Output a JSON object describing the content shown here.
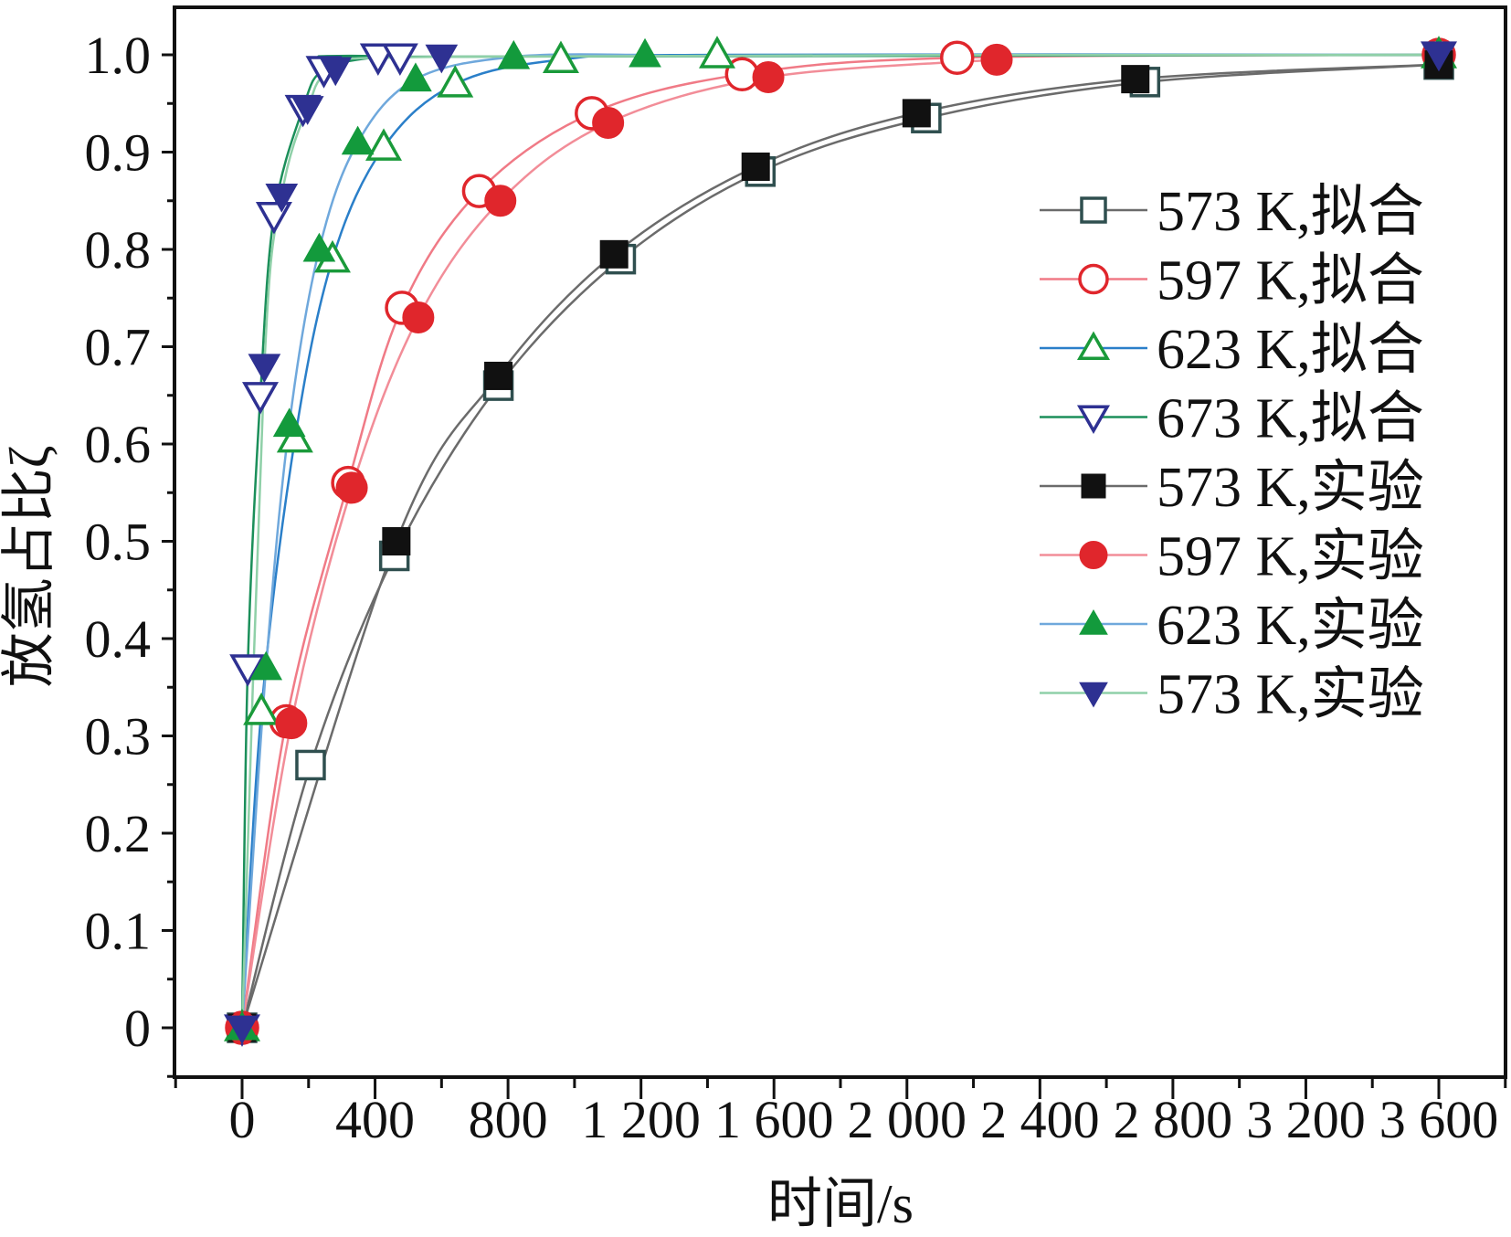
{
  "chart_data": {
    "type": "line",
    "title": "",
    "xlabel": "时间/s",
    "ylabel": "放氢占比ζ",
    "xlim": [
      -200,
      3800
    ],
    "ylim": [
      -0.05,
      1.05
    ],
    "x_ticks": [
      0,
      400,
      800,
      1200,
      1600,
      2000,
      2400,
      2800,
      3200,
      3600
    ],
    "x_tick_labels": [
      "0",
      "400",
      "800",
      "1 200",
      "1 600",
      "2 000",
      "2 400",
      "2 800",
      "3 200",
      "3 600"
    ],
    "y_ticks": [
      0,
      0.1,
      0.2,
      0.3,
      0.4,
      0.5,
      0.6,
      0.7,
      0.8,
      0.9,
      1.0
    ],
    "y_tick_labels": [
      "0",
      "0.1",
      "0.2",
      "0.3",
      "0.4",
      "0.5",
      "0.6",
      "0.7",
      "0.8",
      "0.9",
      "1.0"
    ],
    "grid": false,
    "legend_position": "right",
    "series": [
      {
        "name": "573 K,拟合",
        "line_color": "#6b6b6b",
        "marker": "square-open",
        "marker_color": "#2f4f4f",
        "x": [
          0,
          206,
          458,
          771,
          1139,
          1559,
          2058,
          2716,
          3600
        ],
        "y": [
          0,
          0.27,
          0.485,
          0.66,
          0.79,
          0.88,
          0.935,
          0.972,
          0.99
        ]
      },
      {
        "name": "597 K,拟合",
        "line_color": "#f07a86",
        "marker": "circle-open",
        "marker_color": "#e0262c",
        "x": [
          0,
          133,
          319,
          481,
          713,
          1052,
          1504,
          2151,
          3600
        ],
        "y": [
          0,
          0.315,
          0.56,
          0.74,
          0.86,
          0.94,
          0.98,
          0.997,
          1.0
        ]
      },
      {
        "name": "623 K,拟合",
        "line_color": "#2a7fc9",
        "marker": "triangle-up-open",
        "marker_color": "#1a9a3a",
        "x": [
          0,
          58,
          159,
          272,
          426,
          641,
          959,
          1429,
          3600
        ],
        "y": [
          0,
          0.325,
          0.605,
          0.79,
          0.905,
          0.97,
          0.995,
          1.0,
          1.0
        ]
      },
      {
        "name": "673 K,拟合",
        "line_color": "#1b8f5a",
        "marker": "triangle-down-open",
        "marker_color": "#2e3192",
        "x": [
          0,
          17,
          55,
          96,
          183,
          246,
          409,
          475,
          3600
        ],
        "y": [
          0,
          0.37,
          0.65,
          0.835,
          0.945,
          0.985,
          0.998,
          0.998,
          1.0
        ]
      },
      {
        "name": "573 K,实验",
        "line_color": "#6b6b6b",
        "marker": "square-filled",
        "marker_color": "#111111",
        "x": [
          0,
          464,
          771,
          1119,
          1545,
          2029,
          2687,
          3600
        ],
        "y": [
          0,
          0.5,
          0.67,
          0.795,
          0.885,
          0.94,
          0.975,
          0.99
        ]
      },
      {
        "name": "597 K,实验",
        "line_color": "#f28d98",
        "marker": "circle-filled",
        "marker_color": "#e0262c",
        "x": [
          0,
          148,
          330,
          530,
          777,
          1101,
          1583,
          2270
        ],
        "y": [
          0,
          0.313,
          0.555,
          0.73,
          0.85,
          0.93,
          0.977,
          0.995
        ]
      },
      {
        "name": "623 K,实验",
        "line_color": "#6fa8dc",
        "marker": "triangle-up-filled",
        "marker_color": "#139a3c",
        "x": [
          0,
          72,
          142,
          232,
          348,
          522,
          817,
          1212
        ],
        "y": [
          0,
          0.37,
          0.62,
          0.8,
          0.91,
          0.975,
          0.998,
          1.0
        ]
      },
      {
        "name": "573 K,实验",
        "line_color": "#8fd0a8",
        "marker": "triangle-down-filled",
        "marker_color": "#2e3192",
        "x": [
          0,
          67,
          119,
          197,
          281,
          600,
          3600
        ],
        "y": [
          0,
          0.68,
          0.855,
          0.945,
          0.985,
          0.998,
          1.0
        ]
      }
    ]
  }
}
